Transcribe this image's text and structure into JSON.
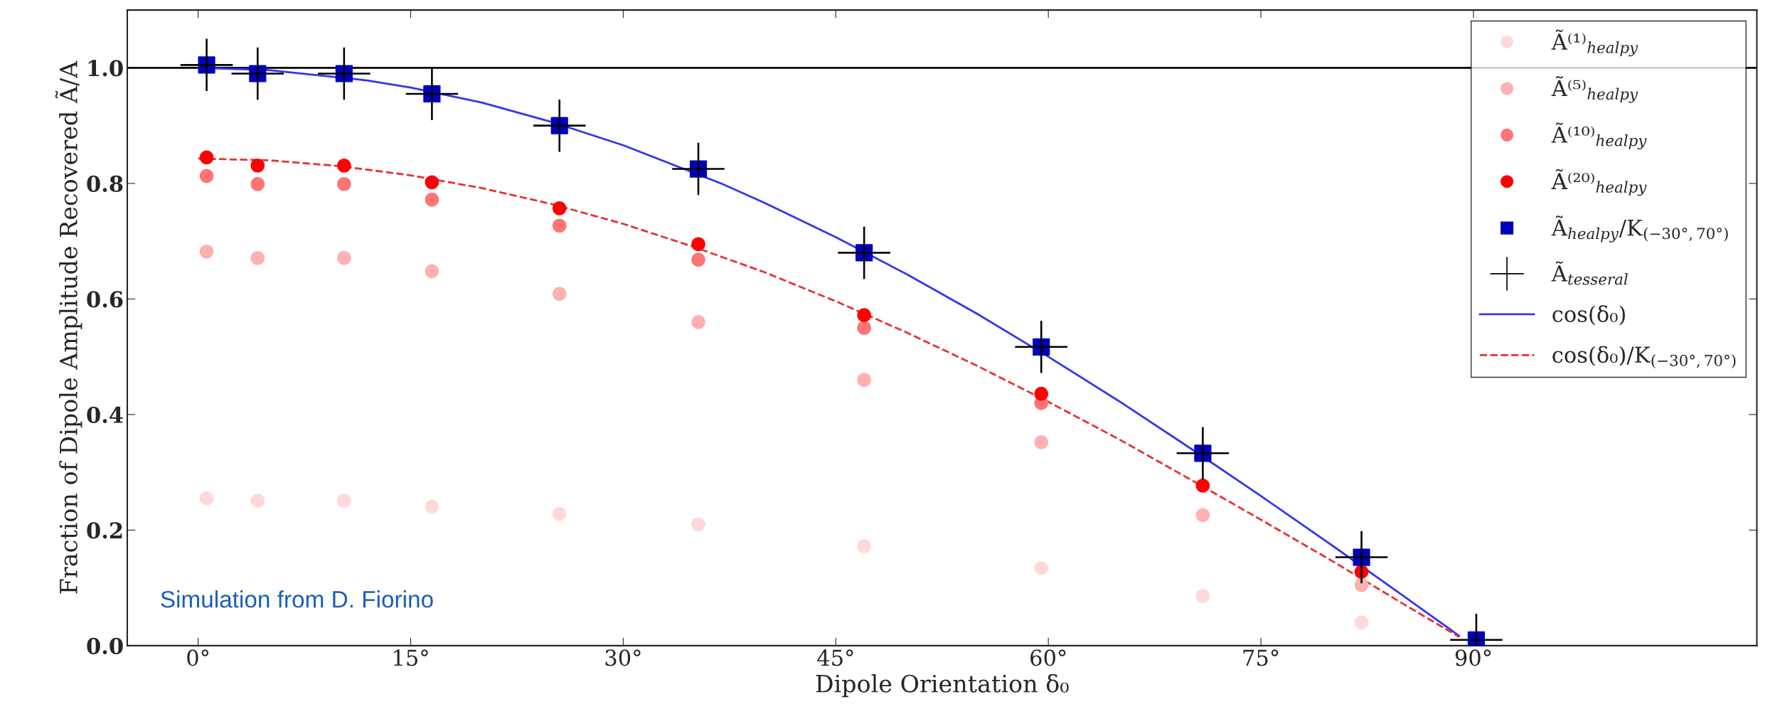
{
  "chart_data": {
    "type": "scatter",
    "xlabel": "Dipole Orientation δ₀",
    "ylabel": "Fraction of Dipole Amplitude Recovered Ã/A",
    "xlim": [
      -5,
      110
    ],
    "ylim": [
      0,
      1.1
    ],
    "xticks": [
      {
        "value": 0,
        "label": "0°"
      },
      {
        "value": 15,
        "label": "15°"
      },
      {
        "value": 30,
        "label": "30°"
      },
      {
        "value": 45,
        "label": "45°"
      },
      {
        "value": 60,
        "label": "60°"
      },
      {
        "value": 75,
        "label": "75°"
      },
      {
        "value": 90,
        "label": "90°"
      }
    ],
    "yticks": [
      {
        "value": 0,
        "label": "0.0"
      },
      0.2,
      0.4,
      0.6,
      0.8,
      {
        "value": 1,
        "label": "1.0"
      }
    ],
    "grid": false,
    "legend": "top right",
    "ref_lines": [
      {
        "axis": "y",
        "value": 1.0,
        "color": "#000000",
        "line_style": "solid"
      }
    ],
    "annotations": [
      "Simulation from D. Fiorino"
    ],
    "series": [
      {
        "name": "Ã⁽¹⁾$_{healpy}$",
        "marker": "circle",
        "color": "#ffd9d9",
        "x": [
          0.6,
          4.2,
          10.3,
          16.5,
          25.5,
          35.3,
          47.0,
          59.5,
          70.9,
          82.1
        ],
        "values": [
          0.255,
          0.251,
          0.251,
          0.241,
          0.228,
          0.21,
          0.172,
          0.134,
          0.086,
          0.04
        ]
      },
      {
        "name": "Ã⁽⁵⁾$_{healpy}$",
        "marker": "circle",
        "color": "#ffb0b0",
        "x": [
          0.6,
          4.2,
          10.3,
          16.5,
          25.5,
          35.3,
          47.0,
          59.5,
          70.9,
          82.1
        ],
        "values": [
          0.682,
          0.671,
          0.671,
          0.648,
          0.609,
          0.56,
          0.46,
          0.352,
          0.226,
          0.105
        ]
      },
      {
        "name": "Ã⁽¹⁰⁾$_{healpy}$",
        "marker": "circle",
        "color": "#ff7474",
        "x": [
          0.6,
          4.2,
          10.3,
          16.5,
          25.5,
          35.3,
          47.0,
          59.5
        ],
        "values": [
          0.813,
          0.799,
          0.799,
          0.772,
          0.727,
          0.668,
          0.55,
          0.42
        ]
      },
      {
        "name": "Ã⁽²⁰⁾$_{healpy}$",
        "marker": "circle",
        "color": "#ff0000",
        "x": [
          0.6,
          4.2,
          10.3,
          16.5,
          25.5,
          35.3,
          47.0,
          59.5,
          70.9,
          82.1
        ],
        "values": [
          0.845,
          0.831,
          0.831,
          0.802,
          0.757,
          0.695,
          0.572,
          0.436,
          0.277,
          0.128
        ]
      },
      {
        "name": "Ã$_{healpy}$/K$_{(−30°,70°)}$",
        "marker": "square",
        "color": "#0000bb",
        "x": [
          0.6,
          4.2,
          10.3,
          16.5,
          25.5,
          35.3,
          47.0,
          59.5,
          70.9,
          82.1,
          90.2
        ],
        "values": [
          1.005,
          0.99,
          0.99,
          0.955,
          0.9,
          0.825,
          0.68,
          0.517,
          0.333,
          0.153,
          0.01
        ]
      },
      {
        "name": "Ã$_{tesseral}$",
        "marker": "cross",
        "color": "#000000",
        "x": [
          0.6,
          4.2,
          10.3,
          16.5,
          25.5,
          35.3,
          47.0,
          59.5,
          70.9,
          82.1,
          90.2
        ],
        "values": [
          1.005,
          0.99,
          0.99,
          0.955,
          0.9,
          0.825,
          0.68,
          0.517,
          0.333,
          0.153,
          0.01
        ]
      },
      {
        "name": "cos(δ₀)",
        "type": "line",
        "line_style": "solid",
        "color": "#3535f0",
        "x": [
          0,
          5,
          12,
          15,
          20,
          25,
          30,
          37,
          40,
          45,
          50,
          55,
          60,
          65,
          70,
          75,
          80,
          85,
          89
        ],
        "values": [
          1.0,
          0.996,
          0.978,
          0.966,
          0.94,
          0.906,
          0.866,
          0.799,
          0.766,
          0.707,
          0.643,
          0.574,
          0.5,
          0.423,
          0.342,
          0.259,
          0.174,
          0.087,
          0.017
        ]
      },
      {
        "name": "cos(δ₀)/K$_{(−30°,70°)}$",
        "type": "line",
        "line_style": "dashed",
        "color": "#e63232",
        "x": [
          0,
          5,
          10,
          15,
          20,
          25,
          30,
          35,
          40,
          45,
          50,
          55,
          60,
          65,
          70,
          75,
          80,
          85,
          89
        ],
        "values": [
          0.843,
          0.84,
          0.83,
          0.814,
          0.792,
          0.764,
          0.73,
          0.69,
          0.646,
          0.596,
          0.542,
          0.484,
          0.422,
          0.357,
          0.288,
          0.218,
          0.147,
          0.073,
          0.015
        ]
      }
    ]
  }
}
